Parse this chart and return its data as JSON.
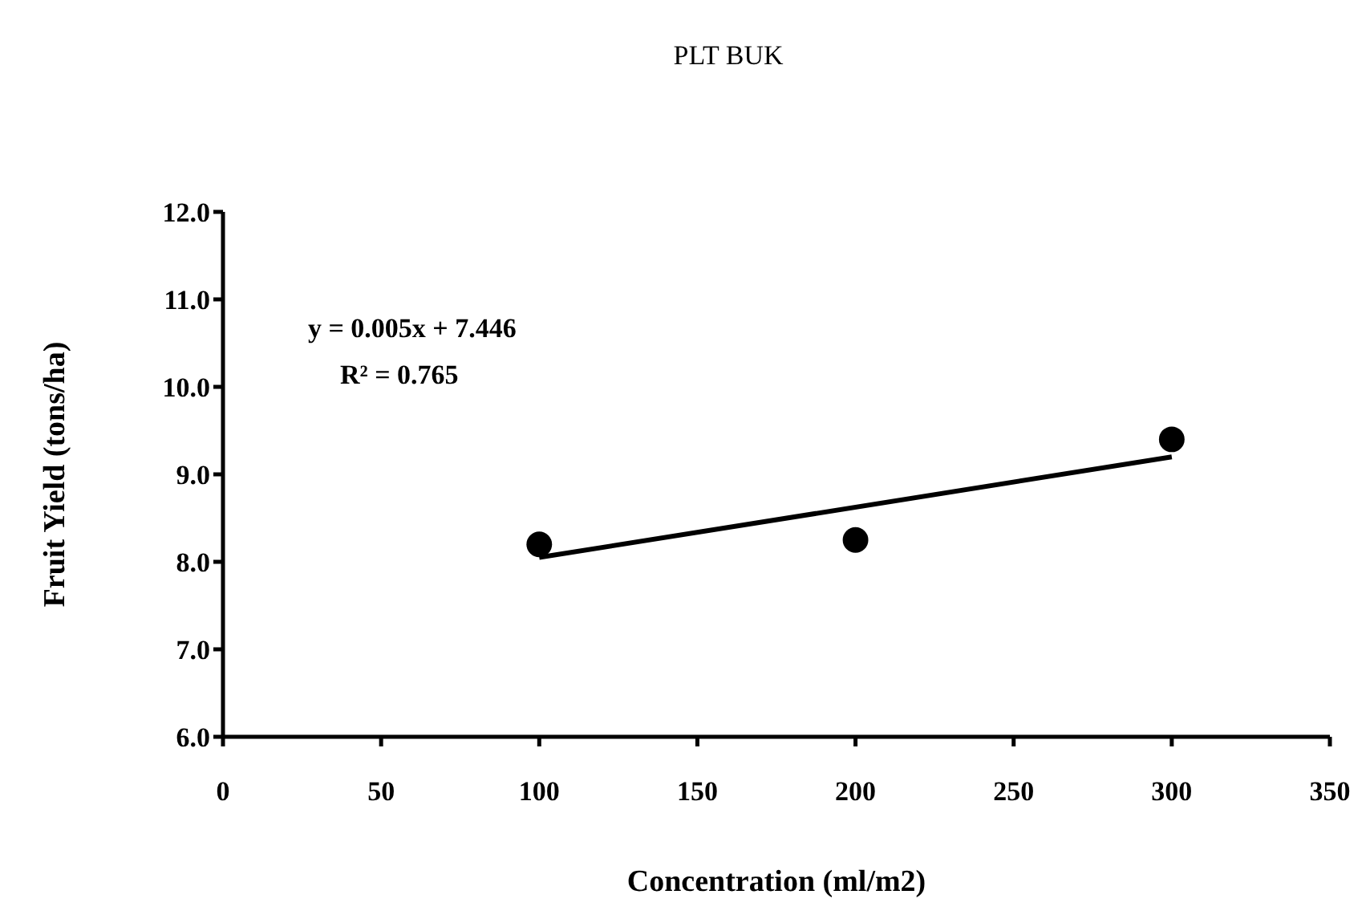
{
  "chart_data": {
    "type": "scatter",
    "title": "PLT BUK",
    "xlabel": "Concentration (ml/m2)",
    "ylabel": "Fruit Yield (tons/ha)",
    "annotations": [
      "y = 0.005x + 7.446",
      "R² = 0.765"
    ],
    "xlim": [
      0,
      350
    ],
    "xticks": [
      0,
      50,
      100,
      150,
      200,
      250,
      300,
      350
    ],
    "ylim": [
      6,
      12
    ],
    "yticks": [
      {
        "value": 6,
        "label": "6.0"
      },
      {
        "value": 7,
        "label": "7.0"
      },
      {
        "value": 8,
        "label": "8.0"
      },
      {
        "value": 9,
        "label": "9.0"
      },
      {
        "value": 10,
        "label": "10.0"
      },
      {
        "value": 11,
        "label": "11.0"
      },
      {
        "value": 12,
        "label": "12.0"
      }
    ],
    "grid": false,
    "marker": "circle",
    "series": [
      {
        "color": "#000000",
        "x": [
          100,
          200,
          300
        ],
        "values": [
          8.2,
          8.25,
          9.4
        ]
      },
      {
        "type": "line",
        "color": "#000000",
        "x": [
          100,
          300
        ],
        "values": [
          8.05,
          9.2
        ],
        "marker": "none",
        "line_style": "solid"
      }
    ]
  }
}
